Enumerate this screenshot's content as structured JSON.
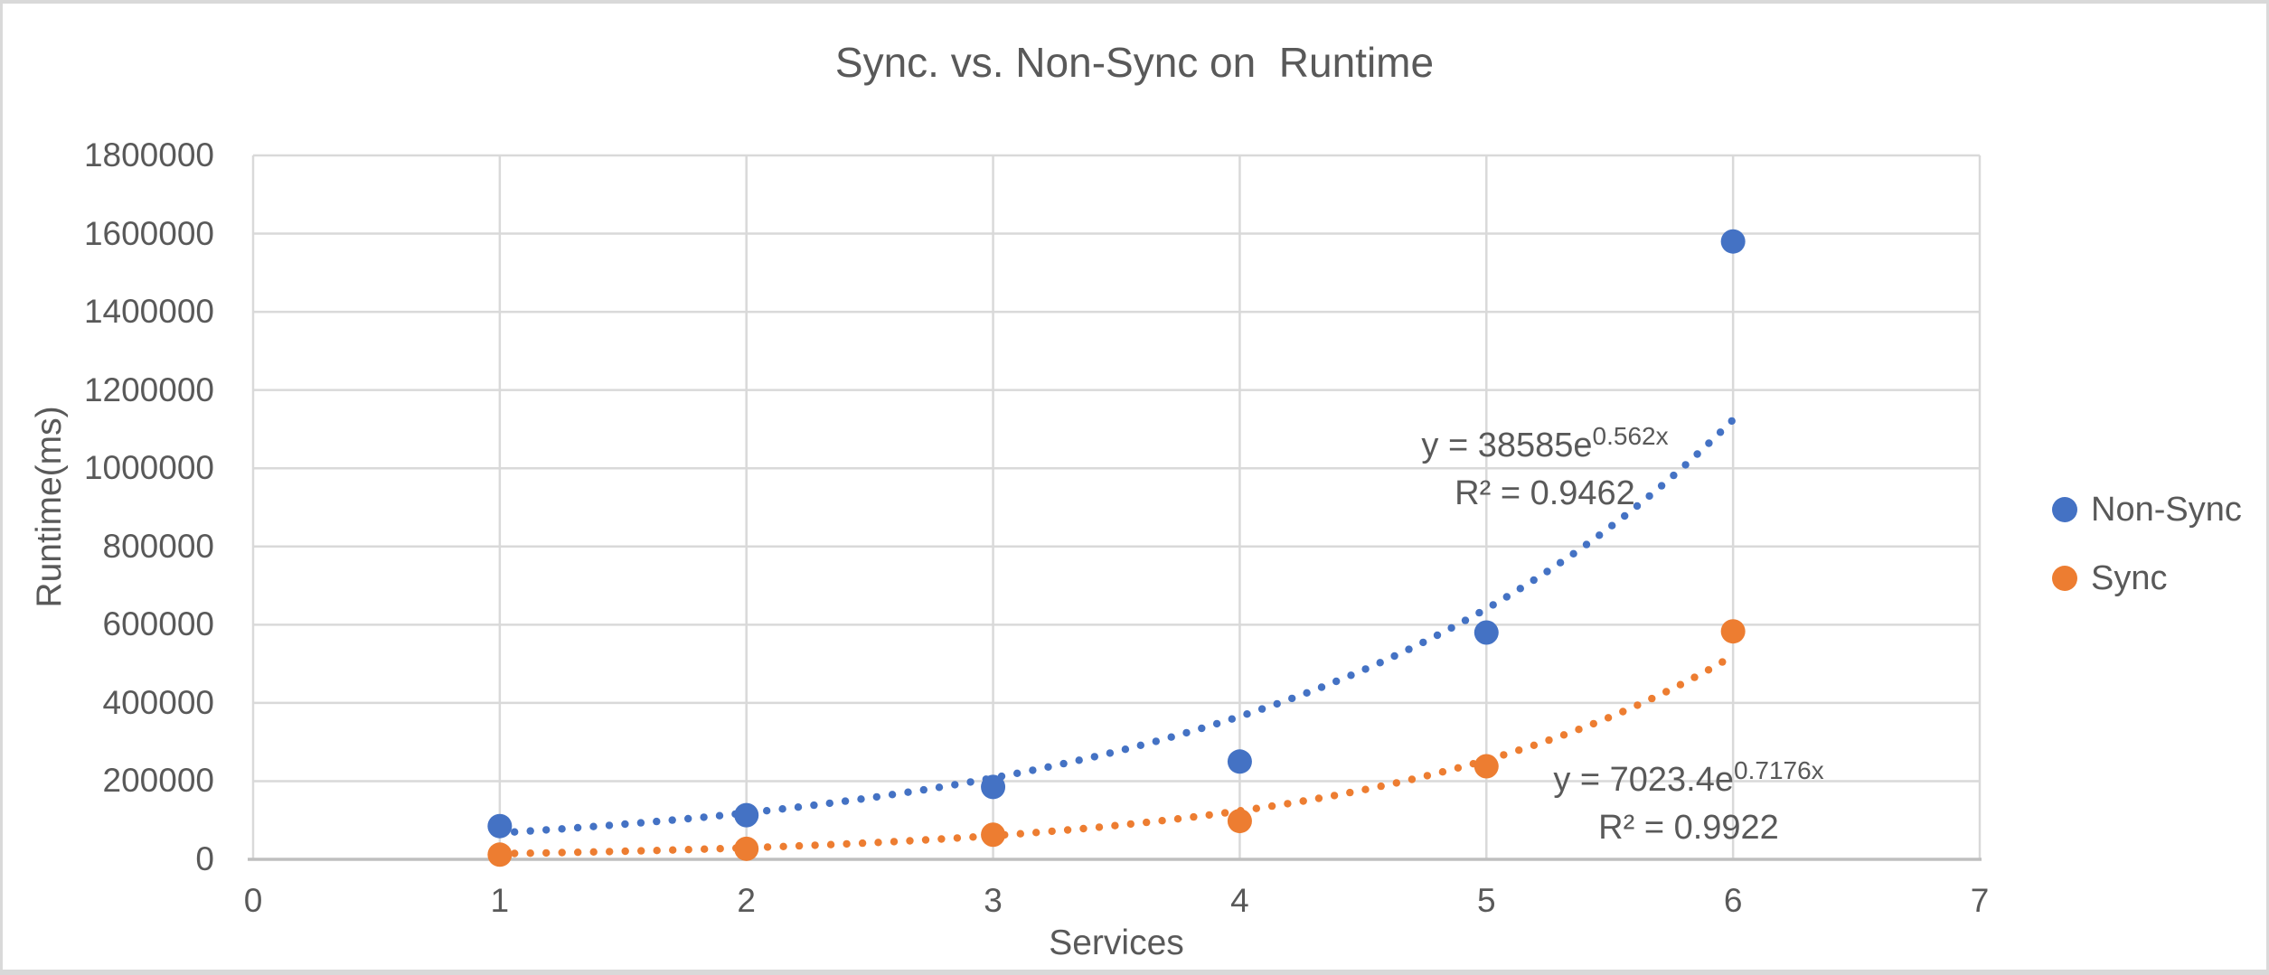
{
  "colors": {
    "non_sync": "#4472C4",
    "sync": "#ED7D31",
    "text": "#595959",
    "gridline": "#D9D9D9",
    "axis_line": "#BFBFBF",
    "background": "#FFFFFF",
    "frame_border": "#D9D9D9"
  },
  "chart_data": {
    "type": "scatter",
    "title": "Sync. vs. Non-Sync on  Runtime",
    "xlabel": "Services",
    "ylabel": "Runtime(ms)",
    "xlim": [
      0,
      7
    ],
    "ylim": [
      0,
      1800000
    ],
    "x_ticks": [
      0,
      1,
      2,
      3,
      4,
      5,
      6,
      7
    ],
    "y_ticks": [
      0,
      200000,
      400000,
      600000,
      800000,
      1000000,
      1200000,
      1400000,
      1600000,
      1800000
    ],
    "grid": true,
    "legend_position": "right",
    "x": [
      1,
      2,
      3,
      4,
      5,
      6
    ],
    "series": [
      {
        "name": "Non-Sync",
        "color": "#4472C4",
        "values": [
          85000,
          113000,
          185000,
          250000,
          580000,
          1580000
        ],
        "trendline": {
          "type": "exponential",
          "a": 38585,
          "b": 0.562,
          "x_range": [
            1.06,
            6
          ],
          "equation_base": "y = 38585e",
          "equation_exponent": "0.562x",
          "r2_label": "R² = 0.9462"
        }
      },
      {
        "name": "Sync",
        "color": "#ED7D31",
        "values": [
          12000,
          27000,
          63000,
          98000,
          238000,
          583000
        ],
        "trendline": {
          "type": "exponential",
          "a": 7023.4,
          "b": 0.7176,
          "x_range": [
            1.06,
            6
          ],
          "equation_base": "y = 7023.4e",
          "equation_exponent": "0.7176x",
          "r2_label": "R² = 0.9922"
        }
      }
    ]
  }
}
